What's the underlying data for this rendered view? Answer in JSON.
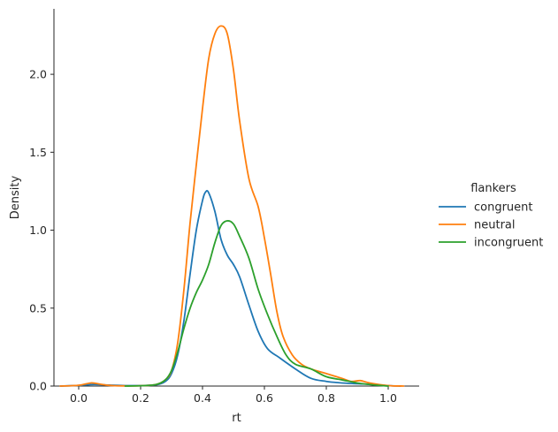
{
  "chart_data": {
    "type": "line",
    "title": "",
    "xlabel": "rt",
    "ylabel": "Density",
    "xlim": [
      -0.08,
      1.1
    ],
    "ylim": [
      0,
      2.42
    ],
    "grid": false,
    "legend": {
      "title": "flankers",
      "placement": "right"
    },
    "x_ticks": [
      0.0,
      0.2,
      0.4,
      0.6,
      0.8,
      1.0
    ],
    "x_tick_labels": [
      "0.0",
      "0.2",
      "0.4",
      "0.6",
      "0.8",
      "1.0"
    ],
    "y_ticks": [
      0.0,
      0.5,
      1.0,
      1.5,
      2.0
    ],
    "y_tick_labels": [
      "0.0",
      "0.5",
      "1.0",
      "1.5",
      "2.0"
    ],
    "series": [
      {
        "name": "congruent",
        "color": "#1f77b4",
        "points": [
          [
            -0.06,
            0.0
          ],
          [
            0.0,
            0.004
          ],
          [
            0.05,
            0.01
          ],
          [
            0.1,
            0.006
          ],
          [
            0.15,
            0.003
          ],
          [
            0.2,
            0.003
          ],
          [
            0.25,
            0.008
          ],
          [
            0.28,
            0.03
          ],
          [
            0.3,
            0.08
          ],
          [
            0.32,
            0.2
          ],
          [
            0.34,
            0.42
          ],
          [
            0.36,
            0.72
          ],
          [
            0.38,
            1.0
          ],
          [
            0.4,
            1.19
          ],
          [
            0.41,
            1.245
          ],
          [
            0.42,
            1.24
          ],
          [
            0.44,
            1.12
          ],
          [
            0.46,
            0.94
          ],
          [
            0.48,
            0.84
          ],
          [
            0.5,
            0.78
          ],
          [
            0.52,
            0.7
          ],
          [
            0.55,
            0.52
          ],
          [
            0.58,
            0.35
          ],
          [
            0.61,
            0.24
          ],
          [
            0.65,
            0.18
          ],
          [
            0.7,
            0.11
          ],
          [
            0.75,
            0.05
          ],
          [
            0.8,
            0.03
          ],
          [
            0.85,
            0.02
          ],
          [
            0.9,
            0.015
          ],
          [
            0.95,
            0.01
          ],
          [
            1.0,
            0.003
          ],
          [
            1.04,
            0.0
          ]
        ]
      },
      {
        "name": "neutral",
        "color": "#ff7f0e",
        "points": [
          [
            -0.06,
            0.0
          ],
          [
            0.0,
            0.005
          ],
          [
            0.04,
            0.02
          ],
          [
            0.07,
            0.012
          ],
          [
            0.1,
            0.004
          ],
          [
            0.15,
            0.001
          ],
          [
            0.2,
            0.002
          ],
          [
            0.25,
            0.01
          ],
          [
            0.28,
            0.04
          ],
          [
            0.3,
            0.1
          ],
          [
            0.32,
            0.28
          ],
          [
            0.34,
            0.62
          ],
          [
            0.36,
            1.05
          ],
          [
            0.38,
            1.42
          ],
          [
            0.4,
            1.78
          ],
          [
            0.42,
            2.1
          ],
          [
            0.44,
            2.26
          ],
          [
            0.46,
            2.31
          ],
          [
            0.48,
            2.26
          ],
          [
            0.5,
            2.03
          ],
          [
            0.52,
            1.7
          ],
          [
            0.55,
            1.33
          ],
          [
            0.58,
            1.15
          ],
          [
            0.6,
            0.95
          ],
          [
            0.62,
            0.72
          ],
          [
            0.64,
            0.48
          ],
          [
            0.66,
            0.32
          ],
          [
            0.69,
            0.2
          ],
          [
            0.72,
            0.14
          ],
          [
            0.75,
            0.11
          ],
          [
            0.8,
            0.08
          ],
          [
            0.85,
            0.05
          ],
          [
            0.88,
            0.03
          ],
          [
            0.91,
            0.035
          ],
          [
            0.94,
            0.02
          ],
          [
            1.0,
            0.003
          ],
          [
            1.05,
            0.0
          ]
        ]
      },
      {
        "name": "incongruent",
        "color": "#2ca02c",
        "points": [
          [
            0.15,
            0.0
          ],
          [
            0.2,
            0.002
          ],
          [
            0.25,
            0.01
          ],
          [
            0.28,
            0.04
          ],
          [
            0.3,
            0.1
          ],
          [
            0.32,
            0.22
          ],
          [
            0.34,
            0.37
          ],
          [
            0.36,
            0.5
          ],
          [
            0.38,
            0.6
          ],
          [
            0.4,
            0.68
          ],
          [
            0.42,
            0.78
          ],
          [
            0.44,
            0.92
          ],
          [
            0.46,
            1.03
          ],
          [
            0.48,
            1.06
          ],
          [
            0.5,
            1.04
          ],
          [
            0.52,
            0.96
          ],
          [
            0.55,
            0.82
          ],
          [
            0.58,
            0.62
          ],
          [
            0.61,
            0.46
          ],
          [
            0.64,
            0.32
          ],
          [
            0.67,
            0.2
          ],
          [
            0.7,
            0.14
          ],
          [
            0.75,
            0.11
          ],
          [
            0.8,
            0.06
          ],
          [
            0.85,
            0.04
          ],
          [
            0.9,
            0.02
          ],
          [
            0.95,
            0.008
          ],
          [
            1.0,
            0.0
          ]
        ]
      }
    ]
  }
}
